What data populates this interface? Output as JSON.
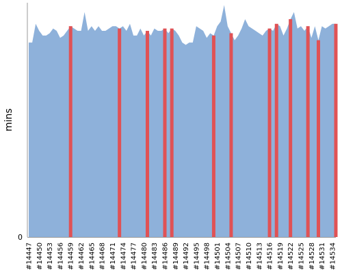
{
  "chart_data": {
    "type": "area",
    "ylabel": "mins",
    "y_tick_labels": [
      "0"
    ],
    "ylim": [
      0,
      100
    ],
    "grid": false,
    "x_tick_labels": [
      "#14447",
      "#14450",
      "#14453",
      "#14456",
      "#14459",
      "#14462",
      "#14465",
      "#14468",
      "#14471",
      "#14474",
      "#14477",
      "#14480",
      "#14483",
      "#14486",
      "#14489",
      "#14492",
      "#14495",
      "#14498",
      "#14501",
      "#14504",
      "#14507",
      "#14510",
      "#14513",
      "#14516",
      "#14519",
      "#14522",
      "#14525",
      "#14528",
      "#14531",
      "#14534"
    ],
    "x_start": 14447,
    "x_end": 14535,
    "values": [
      83,
      83,
      91,
      88,
      86,
      86,
      87,
      89,
      88,
      85,
      86,
      88,
      90,
      89,
      88,
      88,
      96,
      88,
      90,
      88,
      90,
      88,
      88,
      89,
      90,
      90,
      89,
      90,
      88,
      91,
      86,
      86,
      89,
      86,
      88,
      86,
      89,
      88,
      88,
      89,
      87,
      89,
      88,
      86,
      83,
      82,
      83,
      83,
      90,
      89,
      88,
      85,
      87,
      86,
      90,
      92,
      99,
      90,
      87,
      84,
      86,
      89,
      93,
      90,
      89,
      88,
      87,
      86,
      88,
      89,
      88,
      91,
      90,
      86,
      89,
      93,
      96,
      89,
      90,
      88,
      90,
      85,
      90,
      84,
      90,
      89,
      90,
      91,
      91
    ],
    "failed_builds": [
      14459,
      14473,
      14481,
      14486,
      14488,
      14500,
      14505,
      14516,
      14518,
      14522,
      14527,
      14530,
      14535
    ],
    "colors": {
      "area": "#8eb1da",
      "failed": "#e05255",
      "axis": "#999999"
    }
  }
}
